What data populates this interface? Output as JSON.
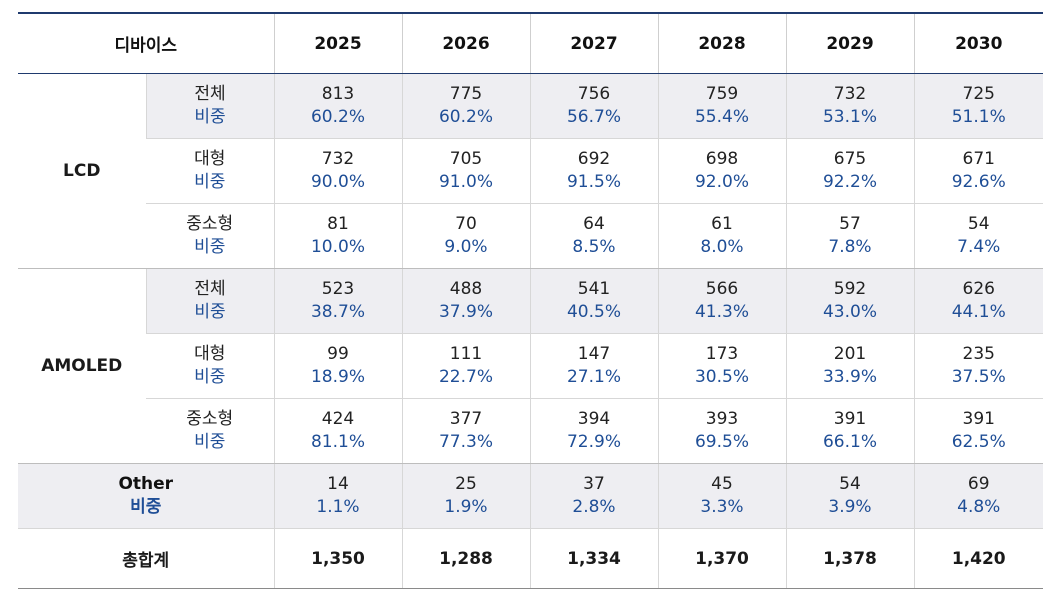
{
  "header": {
    "device_label": "디바이스",
    "years": [
      "2025",
      "2026",
      "2027",
      "2028",
      "2029",
      "2030"
    ]
  },
  "groups": [
    {
      "name": "LCD",
      "rows": [
        {
          "label": "전체",
          "share_label": "비중",
          "values": [
            "813",
            "775",
            "756",
            "759",
            "732",
            "725"
          ],
          "shares": [
            "60.2%",
            "60.2%",
            "56.7%",
            "55.4%",
            "53.1%",
            "51.1%"
          ]
        },
        {
          "label": "대형",
          "share_label": "비중",
          "values": [
            "732",
            "705",
            "692",
            "698",
            "675",
            "671"
          ],
          "shares": [
            "90.0%",
            "91.0%",
            "91.5%",
            "92.0%",
            "92.2%",
            "92.6%"
          ]
        },
        {
          "label": "중소형",
          "share_label": "비중",
          "values": [
            "81",
            "70",
            "64",
            "61",
            "57",
            "54"
          ],
          "shares": [
            "10.0%",
            "9.0%",
            "8.5%",
            "8.0%",
            "7.8%",
            "7.4%"
          ]
        }
      ]
    },
    {
      "name": "AMOLED",
      "rows": [
        {
          "label": "전체",
          "share_label": "비중",
          "values": [
            "523",
            "488",
            "541",
            "566",
            "592",
            "626"
          ],
          "shares": [
            "38.7%",
            "37.9%",
            "40.5%",
            "41.3%",
            "43.0%",
            "44.1%"
          ]
        },
        {
          "label": "대형",
          "share_label": "비중",
          "values": [
            "99",
            "111",
            "147",
            "173",
            "201",
            "235"
          ],
          "shares": [
            "18.9%",
            "22.7%",
            "27.1%",
            "30.5%",
            "33.9%",
            "37.5%"
          ]
        },
        {
          "label": "중소형",
          "share_label": "비중",
          "values": [
            "424",
            "377",
            "394",
            "393",
            "391",
            "391"
          ],
          "shares": [
            "81.1%",
            "77.3%",
            "72.9%",
            "69.5%",
            "66.1%",
            "62.5%"
          ]
        }
      ]
    }
  ],
  "other": {
    "label": "Other",
    "share_label": "비중",
    "values": [
      "14",
      "25",
      "37",
      "45",
      "54",
      "69"
    ],
    "shares": [
      "1.1%",
      "1.9%",
      "2.8%",
      "3.3%",
      "3.9%",
      "4.8%"
    ]
  },
  "total": {
    "label": "총합계",
    "values": [
      "1,350",
      "1,288",
      "1,334",
      "1,370",
      "1,378",
      "1,420"
    ]
  },
  "colors": {
    "header_rule": "#1f3a6e",
    "share_text": "#1f4e96",
    "shaded_row": "#eeeef2"
  }
}
